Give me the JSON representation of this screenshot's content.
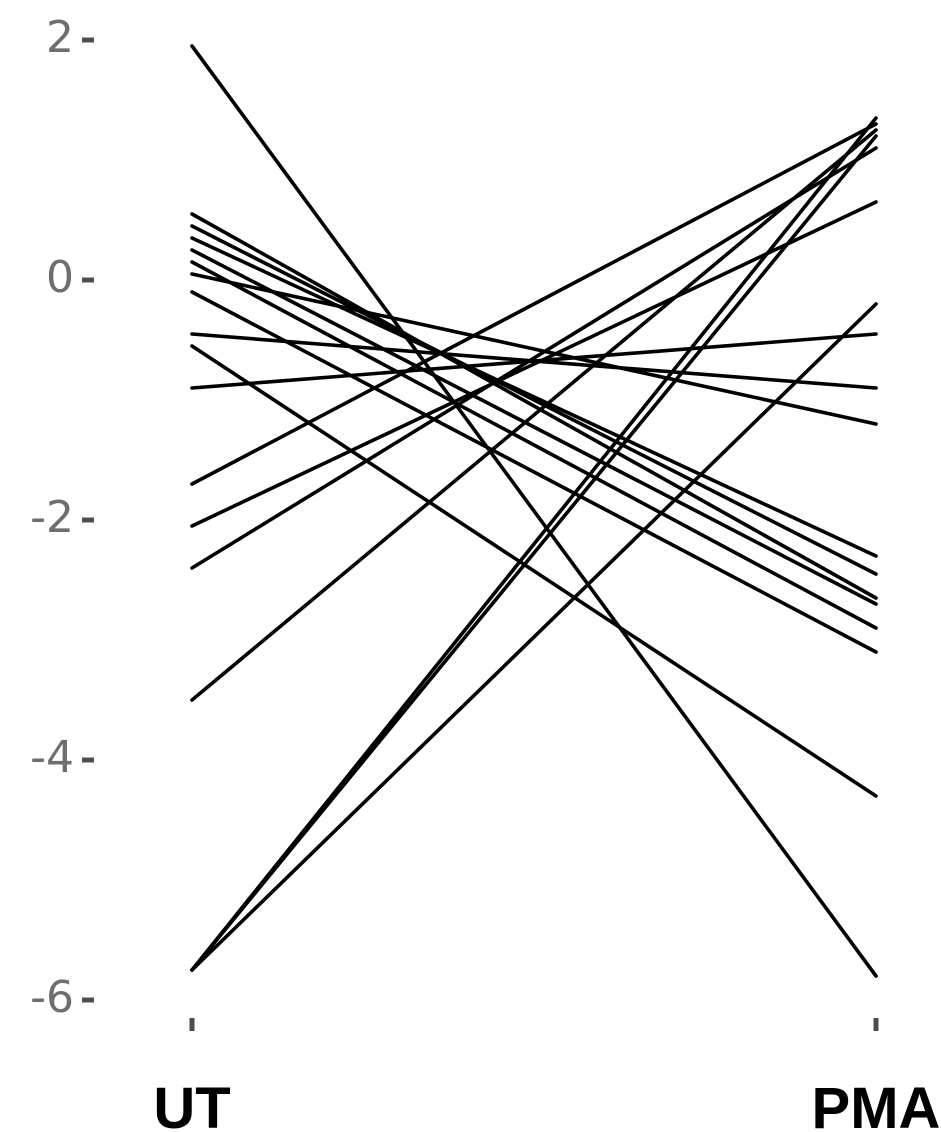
{
  "chart_data": {
    "type": "line",
    "categories": [
      "UT",
      "PMA"
    ],
    "yticks": [
      2,
      0,
      -2,
      -4,
      -6
    ],
    "ytick_labels": [
      "2",
      "0",
      "-2",
      "-4",
      "-6"
    ],
    "ylim": [
      -6,
      2
    ],
    "grid": false,
    "line_color": "#000000",
    "series": [
      {
        "values": [
          1.95,
          -5.8
        ]
      },
      {
        "values": [
          0.55,
          -2.65
        ]
      },
      {
        "values": [
          0.45,
          -2.45
        ]
      },
      {
        "values": [
          0.35,
          -2.3
        ]
      },
      {
        "values": [
          0.25,
          -2.7
        ]
      },
      {
        "values": [
          0.15,
          -2.9
        ]
      },
      {
        "values": [
          0.05,
          -1.2
        ]
      },
      {
        "values": [
          -0.1,
          -3.1
        ]
      },
      {
        "values": [
          -0.45,
          -0.9
        ]
      },
      {
        "values": [
          -0.55,
          -4.3
        ]
      },
      {
        "values": [
          -0.9,
          -0.45
        ]
      },
      {
        "values": [
          -1.7,
          1.3
        ]
      },
      {
        "values": [
          -2.05,
          0.65
        ]
      },
      {
        "values": [
          -2.4,
          1.1
        ]
      },
      {
        "values": [
          -3.5,
          1.25
        ]
      },
      {
        "values": [
          -5.75,
          1.35
        ]
      },
      {
        "values": [
          -5.75,
          1.2
        ]
      },
      {
        "values": [
          -5.75,
          -0.2
        ]
      }
    ]
  }
}
